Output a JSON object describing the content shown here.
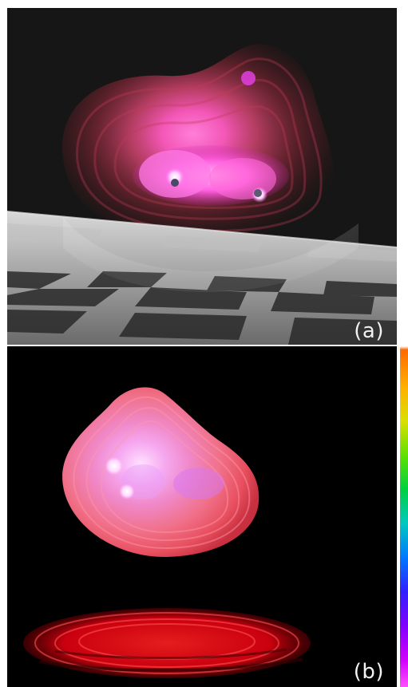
{
  "figure": {
    "panel_a": {
      "label": "(a)",
      "description_icon": "volume-render-scene-icon"
    },
    "panel_b": {
      "label": "(b)",
      "description_icon": "volume-render-isosurface-icon"
    },
    "colorbar": {
      "colors": [
        "#ff6a00",
        "#ffb000",
        "#e0e000",
        "#60e000",
        "#00d040",
        "#00d0c0",
        "#0080ff",
        "#3020ff",
        "#8000ff",
        "#d000ff",
        "#ff40ff"
      ]
    }
  }
}
